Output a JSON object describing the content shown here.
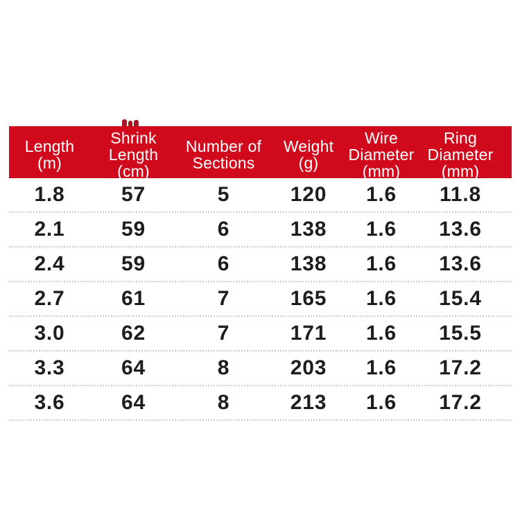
{
  "colors": {
    "header_bg": "#d00a1c",
    "header_text": "#ffffff",
    "cell_text": "#1d1d1d",
    "separator": "#cccccc",
    "artifact": "#a51523",
    "page_bg": "#ffffff"
  },
  "table": {
    "headers": [
      {
        "lines": [
          "Length",
          "(m)"
        ]
      },
      {
        "lines": [
          "Shrink",
          "Length",
          "(cm)"
        ]
      },
      {
        "lines": [
          "Number of",
          "Sections"
        ]
      },
      {
        "lines": [
          "Weight",
          "(g)"
        ]
      },
      {
        "lines": [
          "Wire",
          "Diameter",
          "(mm)"
        ]
      },
      {
        "lines": [
          "Ring",
          "Diameter",
          "(mm)"
        ]
      }
    ],
    "rows": [
      [
        "1.8",
        "57",
        "5",
        "120",
        "1.6",
        "11.8"
      ],
      [
        "2.1",
        "59",
        "6",
        "138",
        "1.6",
        "13.6"
      ],
      [
        "2.4",
        "59",
        "6",
        "138",
        "1.6",
        "13.6"
      ],
      [
        "2.7",
        "61",
        "7",
        "165",
        "1.6",
        "15.4"
      ],
      [
        "3.0",
        "62",
        "7",
        "171",
        "1.6",
        "15.5"
      ],
      [
        "3.3",
        "64",
        "8",
        "203",
        "1.6",
        "17.2"
      ],
      [
        "3.6",
        "64",
        "8",
        "213",
        "1.6",
        "17.2"
      ]
    ]
  },
  "chart_data": {
    "type": "table",
    "title": "",
    "columns": [
      "Length (m)",
      "Shrink Length (cm)",
      "Number of Sections",
      "Weight (g)",
      "Wire Diameter (mm)",
      "Ring Diameter (mm)"
    ],
    "rows": [
      [
        1.8,
        57,
        5,
        120,
        1.6,
        11.8
      ],
      [
        2.1,
        59,
        6,
        138,
        1.6,
        13.6
      ],
      [
        2.4,
        59,
        6,
        138,
        1.6,
        13.6
      ],
      [
        2.7,
        61,
        7,
        165,
        1.6,
        15.4
      ],
      [
        3.0,
        62,
        7,
        171,
        1.6,
        15.5
      ],
      [
        3.3,
        64,
        8,
        203,
        1.6,
        17.2
      ],
      [
        3.6,
        64,
        8,
        213,
        1.6,
        17.2
      ]
    ],
    "layout": {
      "header_position": "top",
      "header_bg": "#d00a1c",
      "row_separators": "dotted",
      "grid": "horizontal-only"
    }
  }
}
